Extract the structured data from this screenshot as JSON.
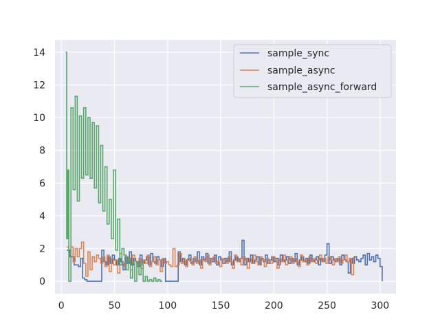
{
  "chart_data": {
    "type": "line",
    "title": "",
    "xlabel": "",
    "ylabel": "",
    "xlim": [
      -6,
      315
    ],
    "ylim": [
      -0.75,
      14.75
    ],
    "xticks": [
      "0",
      "50",
      "100",
      "150",
      "200",
      "250",
      "300"
    ],
    "yticks": [
      "0",
      "2",
      "4",
      "6",
      "8",
      "10",
      "12",
      "14"
    ],
    "grid": true,
    "legend_position": "top-right",
    "series": [
      {
        "name": "sample_sync",
        "color": "#4c72b0",
        "x": [
          5,
          8,
          12,
          16,
          18,
          20,
          22,
          24,
          26,
          28,
          30,
          32,
          34,
          36,
          38,
          40,
          42,
          44,
          46,
          48,
          50,
          52,
          54,
          56,
          58,
          60,
          62,
          64,
          66,
          68,
          70,
          72,
          74,
          76,
          78,
          80,
          82,
          84,
          86,
          88,
          90,
          92,
          94,
          96,
          98,
          100,
          102,
          104,
          106,
          108,
          110,
          112,
          114,
          116,
          118,
          120,
          122,
          124,
          126,
          128,
          130,
          132,
          134,
          136,
          138,
          140,
          142,
          144,
          146,
          148,
          150,
          152,
          154,
          156,
          158,
          160,
          162,
          164,
          166,
          168,
          170,
          172,
          174,
          176,
          178,
          180,
          182,
          184,
          186,
          188,
          190,
          192,
          194,
          196,
          198,
          200,
          202,
          204,
          206,
          208,
          210,
          212,
          214,
          216,
          218,
          220,
          222,
          224,
          226,
          228,
          230,
          232,
          234,
          236,
          238,
          240,
          242,
          244,
          246,
          248,
          250,
          252,
          254,
          256,
          258,
          260,
          262,
          264,
          266,
          268,
          270,
          272,
          274,
          276,
          278,
          280,
          282,
          284,
          286,
          288,
          290,
          292,
          294,
          296,
          298,
          300,
          302
        ],
        "values": [
          1.9,
          1.5,
          1.0,
          0.9,
          1.4,
          0.2,
          0.1,
          0.0,
          0.0,
          0.0,
          0.0,
          0.0,
          0.0,
          0.0,
          1.9,
          1.2,
          1.0,
          1.5,
          1.1,
          1.6,
          1.3,
          1.0,
          1.4,
          1.2,
          0.7,
          1.5,
          1.1,
          1.8,
          1.0,
          1.4,
          1.2,
          0.9,
          1.6,
          1.1,
          1.3,
          1.5,
          1.0,
          1.7,
          1.2,
          1.1,
          1.5,
          1.3,
          0.9,
          1.4,
          0.0,
          0.0,
          0.0,
          0.0,
          0.0,
          0.0,
          1.8,
          1.2,
          1.4,
          1.0,
          1.3,
          1.6,
          1.1,
          1.4,
          1.2,
          1.8,
          1.0,
          1.5,
          1.3,
          1.7,
          1.1,
          1.4,
          1.2,
          1.6,
          1.0,
          1.5,
          1.3,
          1.1,
          1.4,
          1.2,
          1.8,
          1.0,
          1.3,
          1.5,
          1.2,
          1.4,
          2.5,
          1.0,
          1.4,
          1.2,
          1.6,
          1.1,
          1.3,
          1.5,
          1.0,
          1.4,
          1.2,
          1.6,
          1.1,
          1.3,
          1.5,
          1.2,
          1.4,
          1.0,
          1.6,
          1.2,
          1.3,
          1.5,
          1.1,
          1.4,
          1.2,
          1.7,
          1.0,
          1.3,
          1.5,
          1.2,
          1.4,
          1.1,
          1.6,
          1.2,
          1.3,
          1.5,
          1.0,
          1.4,
          1.2,
          1.6,
          2.3,
          1.1,
          1.5,
          1.3,
          1.2,
          1.4,
          1.0,
          1.6,
          1.3,
          1.2,
          0.5,
          1.4,
          1.1,
          1.5,
          1.3,
          1.2,
          1.4,
          1.6,
          1.0,
          1.7,
          1.3,
          1.5,
          1.2,
          1.6,
          1.4,
          0.9,
          0.0
        ]
      },
      {
        "name": "sample_async",
        "color": "#dd8452",
        "x": [
          5,
          7,
          9,
          11,
          13,
          15,
          17,
          19,
          21,
          23,
          25,
          27,
          29,
          31,
          33,
          35,
          37,
          39,
          41,
          43,
          45,
          47,
          49,
          51,
          53,
          55,
          57,
          59,
          61,
          63,
          65,
          67,
          69,
          71,
          73,
          75,
          77,
          79,
          81,
          83,
          85,
          87,
          89,
          91,
          93,
          95,
          97,
          99,
          101,
          103,
          105,
          107,
          109,
          111,
          113,
          115,
          117,
          119,
          121,
          123,
          125,
          127,
          129,
          131,
          133,
          135,
          137,
          139,
          141,
          143,
          145,
          147,
          149,
          151,
          153,
          155,
          157,
          159,
          161,
          163,
          165,
          167,
          169,
          171,
          173,
          175,
          177,
          179,
          181,
          183,
          185,
          187,
          189,
          191,
          193,
          195,
          197,
          199,
          201,
          203,
          205,
          207,
          209,
          211,
          213,
          215,
          217,
          219,
          221,
          223,
          225,
          227,
          229,
          231,
          233,
          235,
          237,
          239,
          241,
          243,
          245,
          247,
          249,
          251,
          253,
          255,
          257,
          259,
          261,
          263,
          265,
          267,
          269,
          271,
          273,
          275
        ],
        "values": [
          2.1,
          1.7,
          2.1,
          1.2,
          2.0,
          1.5,
          2.0,
          2.4,
          1.1,
          0.3,
          1.8,
          0.7,
          1.5,
          1.2,
          1.6,
          1.4,
          1.1,
          1.5,
          0.9,
          1.6,
          0.6,
          1.4,
          1.0,
          1.3,
          0.5,
          1.7,
          1.1,
          0.9,
          1.5,
          1.3,
          0.7,
          1.6,
          1.2,
          1.0,
          1.4,
          0.8,
          1.3,
          1.1,
          1.6,
          0.9,
          1.2,
          1.5,
          1.0,
          1.3,
          0.6,
          1.4,
          1.1,
          1.2,
          1.0,
          0.9,
          2.0,
          0.9,
          1.0,
          1.7,
          1.1,
          1.3,
          0.9,
          1.4,
          1.2,
          1.0,
          1.5,
          1.1,
          1.3,
          0.8,
          1.4,
          1.2,
          1.6,
          1.0,
          1.3,
          1.5,
          1.1,
          1.2,
          0.9,
          1.4,
          1.3,
          1.1,
          1.5,
          1.2,
          0.8,
          1.6,
          1.2,
          1.4,
          1.0,
          1.5,
          1.3,
          0.8,
          1.4,
          1.1,
          1.6,
          1.2,
          1.0,
          1.5,
          1.3,
          0.9,
          1.4,
          1.2,
          1.1,
          1.5,
          1.3,
          0.8,
          1.4,
          1.2,
          1.6,
          1.0,
          1.3,
          1.5,
          1.1,
          1.4,
          1.2,
          0.9,
          1.6,
          1.2,
          1.3,
          1.0,
          1.5,
          1.2,
          1.4,
          1.1,
          1.3,
          1.6,
          1.2,
          1.4,
          1.1,
          1.5,
          1.3,
          1.0,
          1.4,
          1.2,
          1.5,
          1.1,
          1.3,
          1.6,
          1.2,
          1.4,
          0.4,
          1.5
        ]
      },
      {
        "name": "sample_async_forward",
        "color": "#55a868",
        "x": [
          4,
          5,
          6,
          7,
          9,
          11,
          13,
          15,
          17,
          19,
          21,
          23,
          25,
          27,
          29,
          31,
          33,
          35,
          37,
          39,
          41,
          43,
          45,
          47,
          49,
          51,
          53,
          55,
          57,
          59,
          61,
          63,
          65,
          67,
          69,
          71,
          73,
          75,
          77,
          79,
          81,
          83,
          85,
          87,
          89,
          91,
          93,
          95
        ],
        "values": [
          14.0,
          2.6,
          6.8,
          0.0,
          10.6,
          5.6,
          11.3,
          4.9,
          10.1,
          6.3,
          10.6,
          6.5,
          10.0,
          6.3,
          9.7,
          5.7,
          9.5,
          4.8,
          8.3,
          4.3,
          7.0,
          3.5,
          5.0,
          2.6,
          6.8,
          1.9,
          3.8,
          1.0,
          2.0,
          1.6,
          0.7,
          1.4,
          0.2,
          1.1,
          0.0,
          1.2,
          0.4,
          1.0,
          0.0,
          0.3,
          0.0,
          0.1,
          0.0,
          0.2,
          0.0,
          0.1,
          0.0,
          0.0
        ]
      }
    ]
  }
}
